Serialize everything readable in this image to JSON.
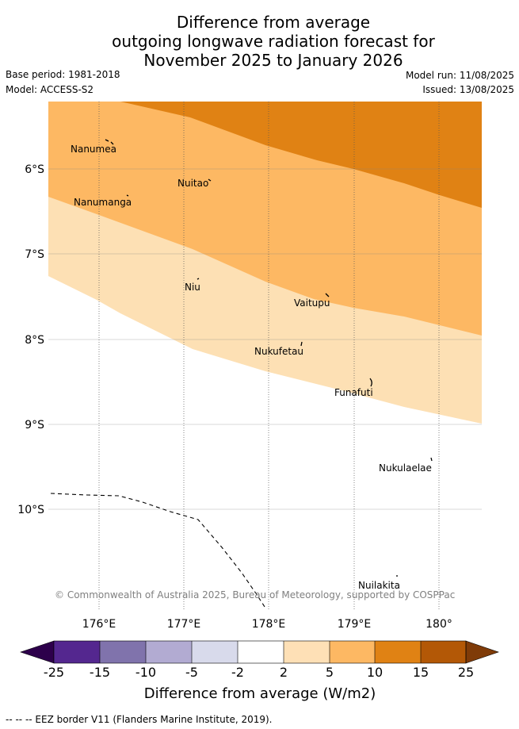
{
  "title": {
    "line1": "Difference from average",
    "line2": "outgoing longwave radiation forecast for",
    "line3": "November 2025 to January 2026"
  },
  "meta": {
    "base_period": "Base period: 1981-2018",
    "model": "Model: ACCESS-S2",
    "model_run": "Model run: 11/08/2025",
    "issued": "Issued: 13/08/2025"
  },
  "map": {
    "lat_labels": [
      "6°S",
      "7°S",
      "8°S",
      "9°S",
      "10°S"
    ],
    "lon_labels": [
      "176°E",
      "177°E",
      "178°E",
      "179°E",
      "180°"
    ],
    "islands": [
      "Nanumea",
      "Nuitao",
      "Nanumanga",
      "Niu",
      "Vaitupu",
      "Nukufetau",
      "Funafuti",
      "Nukulaelae",
      "Nuilakita"
    ],
    "copyright": "© Commonwealth of Australia 2025, Bureau of Meteorology, supported by COSPPac",
    "colors": {
      "band_2_5": "#fde0b4",
      "band_5_10": "#fdb863",
      "band_10_15": "#e08214",
      "gridline": "#808080"
    }
  },
  "colorbar": {
    "labels": [
      "-25",
      "-15",
      "-10",
      "-5",
      "-2",
      "2",
      "5",
      "10",
      "15",
      "25"
    ],
    "colors": [
      "#54278f",
      "#8073ac",
      "#b2abd2",
      "#d8daeb",
      "#ffffff",
      "#fee0b6",
      "#fdb863",
      "#e08214",
      "#b35806"
    ],
    "under_color": "#2d004b",
    "over_color": "#7f3b08",
    "title": "Difference from average (W/m2)"
  },
  "footer": "-- -- -- EEZ border V11 (Flanders Marine Institute, 2019)."
}
